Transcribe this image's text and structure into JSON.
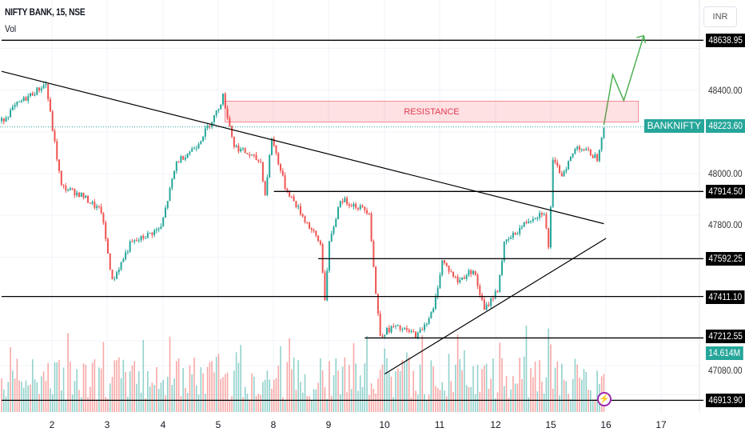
{
  "header": {
    "symbol_title": "NIFTY BANK, 15, NSE",
    "indicator": "Vol",
    "currency_button": "INR"
  },
  "annotations": {
    "zone_label": "RESISTANCE"
  },
  "price_axis": {
    "labels": [
      "48400.00",
      "48000.00",
      "47800.00",
      "47080.00"
    ],
    "values": [
      48400,
      48000,
      47800,
      47080
    ]
  },
  "level_tags": [
    {
      "label": "48638.95",
      "value": 48638.95,
      "from_bar": 0
    },
    {
      "label": "47914.50",
      "value": 47914.5,
      "from_bar": 123
    },
    {
      "label": "47592.25",
      "value": 47592.25,
      "from_bar": 143
    },
    {
      "label": "47411.10",
      "value": 47411.1,
      "from_bar": 0
    },
    {
      "label": "47212.55",
      "value": 47212.55,
      "from_bar": 164
    },
    {
      "label": "46913.90",
      "value": 46913.9,
      "from_bar": 0
    }
  ],
  "last_price": {
    "symbol": "BANKNIFTY",
    "price": "48223.60",
    "value": 48223.6
  },
  "volume_tag": "14.614M",
  "time_axis": [
    "2",
    "3",
    "4",
    "5",
    "8",
    "9",
    "10",
    "11",
    "12",
    "15",
    "16",
    "17"
  ],
  "colors": {
    "up": "#26a69a",
    "down": "#ef5350",
    "projection": "#4caf50"
  },
  "chart_data": {
    "type": "candlestick",
    "title": "NIFTY BANK, 15, NSE",
    "resistance_zone": [
      48240,
      48347
    ],
    "price_path": [
      [
        0,
        48252
      ],
      [
        7,
        48331
      ],
      [
        20,
        48430
      ],
      [
        23,
        48213
      ],
      [
        27,
        47937
      ],
      [
        36,
        47897
      ],
      [
        45,
        47819
      ],
      [
        50,
        47483
      ],
      [
        58,
        47661
      ],
      [
        72,
        47740
      ],
      [
        79,
        48055
      ],
      [
        88,
        48134
      ],
      [
        97,
        48292
      ],
      [
        100,
        48371
      ],
      [
        105,
        48134
      ],
      [
        117,
        48055
      ],
      [
        119,
        47897
      ],
      [
        122,
        48174
      ],
      [
        128,
        47937
      ],
      [
        137,
        47779
      ],
      [
        144,
        47661
      ],
      [
        146,
        47404
      ],
      [
        148,
        47661
      ],
      [
        153,
        47878
      ],
      [
        166,
        47819
      ],
      [
        169,
        47424
      ],
      [
        171,
        47227
      ],
      [
        177,
        47266
      ],
      [
        188,
        47227
      ],
      [
        195,
        47345
      ],
      [
        199,
        47582
      ],
      [
        206,
        47483
      ],
      [
        213,
        47542
      ],
      [
        218,
        47345
      ],
      [
        224,
        47444
      ],
      [
        227,
        47661
      ],
      [
        238,
        47779
      ],
      [
        245,
        47819
      ],
      [
        247,
        47641
      ],
      [
        249,
        48055
      ],
      [
        253,
        47996
      ],
      [
        260,
        48134
      ],
      [
        269,
        48075
      ],
      [
        272,
        48233
      ]
    ],
    "trendlines": [
      {
        "from": [
          0,
          48490
        ],
        "to": [
          272,
          47760
        ]
      },
      {
        "from": [
          173,
          47040
        ],
        "to": [
          273,
          47690
        ]
      }
    ],
    "projection": [
      [
        272,
        48233
      ],
      [
        276,
        48475
      ],
      [
        281,
        48350
      ],
      [
        290,
        48660
      ]
    ]
  }
}
